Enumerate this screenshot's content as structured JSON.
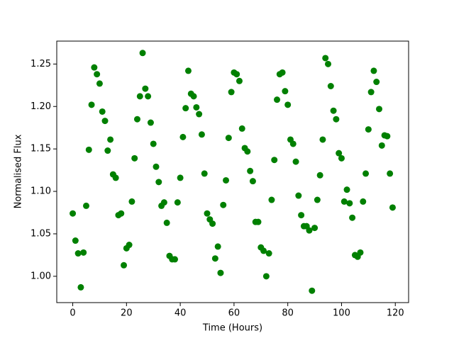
{
  "chart_data": {
    "type": "scatter",
    "x_label": "Time (Hours)",
    "y_label": "Normalised Flux",
    "color": "#008000",
    "x": [
      0,
      1,
      2,
      3,
      4,
      5,
      6,
      7,
      8,
      9,
      10,
      11,
      12,
      13,
      14,
      15,
      16,
      17,
      18,
      19,
      20,
      21,
      22,
      23,
      24,
      25,
      26,
      27,
      28,
      29,
      30,
      31,
      32,
      33,
      34,
      35,
      36,
      37,
      38,
      39,
      40,
      41,
      42,
      43,
      44,
      45,
      46,
      47,
      48,
      49,
      50,
      51,
      52,
      53,
      54,
      55,
      56,
      57,
      58,
      59,
      60,
      61,
      62,
      63,
      64,
      65,
      66,
      67,
      68,
      69,
      70,
      71,
      72,
      73,
      74,
      75,
      76,
      77,
      78,
      79,
      80,
      81,
      82,
      83,
      84,
      85,
      86,
      87,
      88,
      89,
      90,
      91,
      92,
      93,
      94,
      95,
      96,
      97,
      98,
      99,
      100,
      101,
      102,
      103,
      104,
      105,
      106,
      107,
      108,
      109,
      110,
      111,
      112,
      113,
      114,
      115,
      116,
      117,
      118,
      119
    ],
    "values": [
      1.074,
      1.042,
      1.027,
      0.987,
      1.028,
      1.083,
      1.149,
      1.202,
      1.246,
      1.238,
      1.227,
      1.194,
      1.183,
      1.148,
      1.161,
      1.12,
      1.116,
      1.072,
      1.074,
      1.013,
      1.033,
      1.037,
      1.088,
      1.139,
      1.185,
      1.212,
      1.263,
      1.221,
      1.212,
      1.181,
      1.156,
      1.129,
      1.111,
      1.083,
      1.087,
      1.063,
      1.024,
      1.02,
      1.02,
      1.087,
      1.116,
      1.164,
      1.198,
      1.242,
      1.215,
      1.212,
      1.199,
      1.191,
      1.167,
      1.121,
      1.074,
      1.067,
      1.062,
      1.021,
      1.035,
      1.004,
      1.084,
      1.113,
      1.163,
      1.217,
      1.24,
      1.238,
      1.23,
      1.174,
      1.151,
      1.147,
      1.124,
      1.112,
      1.064,
      1.064,
      1.034,
      1.03,
      1.0,
      1.027,
      1.09,
      1.137,
      1.208,
      1.238,
      1.24,
      1.218,
      1.202,
      1.161,
      1.156,
      1.135,
      1.095,
      1.072,
      1.059,
      1.059,
      1.054,
      0.983,
      1.057,
      1.09,
      1.119,
      1.161,
      1.257,
      1.25,
      1.224,
      1.195,
      1.185,
      1.145,
      1.139,
      1.088,
      1.102,
      1.086,
      1.069,
      1.025,
      1.023,
      1.028,
      1.088,
      1.121,
      1.173,
      1.217,
      1.242,
      1.229,
      1.197,
      1.154,
      1.166,
      1.165,
      1.121,
      1.081
    ],
    "xlim": [
      -5.95,
      124.95
    ],
    "ylim": [
      0.969,
      1.277
    ],
    "xticks": [
      0,
      20,
      40,
      60,
      80,
      100,
      120
    ],
    "yticks": [
      {
        "value": 1.0,
        "label": "1.00"
      },
      {
        "value": 1.05,
        "label": "1.05"
      },
      {
        "value": 1.1,
        "label": "1.10"
      },
      {
        "value": 1.15,
        "label": "1.15"
      },
      {
        "value": 1.2,
        "label": "1.20"
      },
      {
        "value": 1.25,
        "label": "1.25"
      }
    ]
  }
}
